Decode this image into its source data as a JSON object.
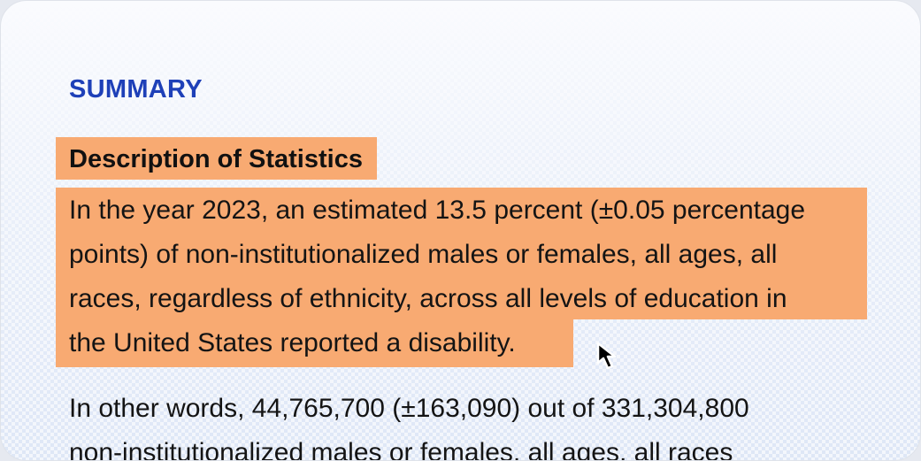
{
  "section": {
    "label": "SUMMARY"
  },
  "description": {
    "heading": "Description of Statistics",
    "lines": [
      "In the year 2023, an estimated 13.5 percent (±0.05 percentage",
      "points) of non-institutionalized males or females, all ages, all",
      "races, regardless of ethnicity, across all levels of education in",
      "the United States reported a disability."
    ]
  },
  "summary_paragraph": {
    "lines": [
      "In other words, 44,765,700 (±163,090) out of 331,304,800",
      "non-institutionalized males or females, all ages, all races"
    ]
  },
  "colors": {
    "highlight": "#f8aa72",
    "label": "#1e40b8",
    "text": "#141414"
  },
  "icons": {
    "cursor": "mouse-pointer-icon"
  }
}
